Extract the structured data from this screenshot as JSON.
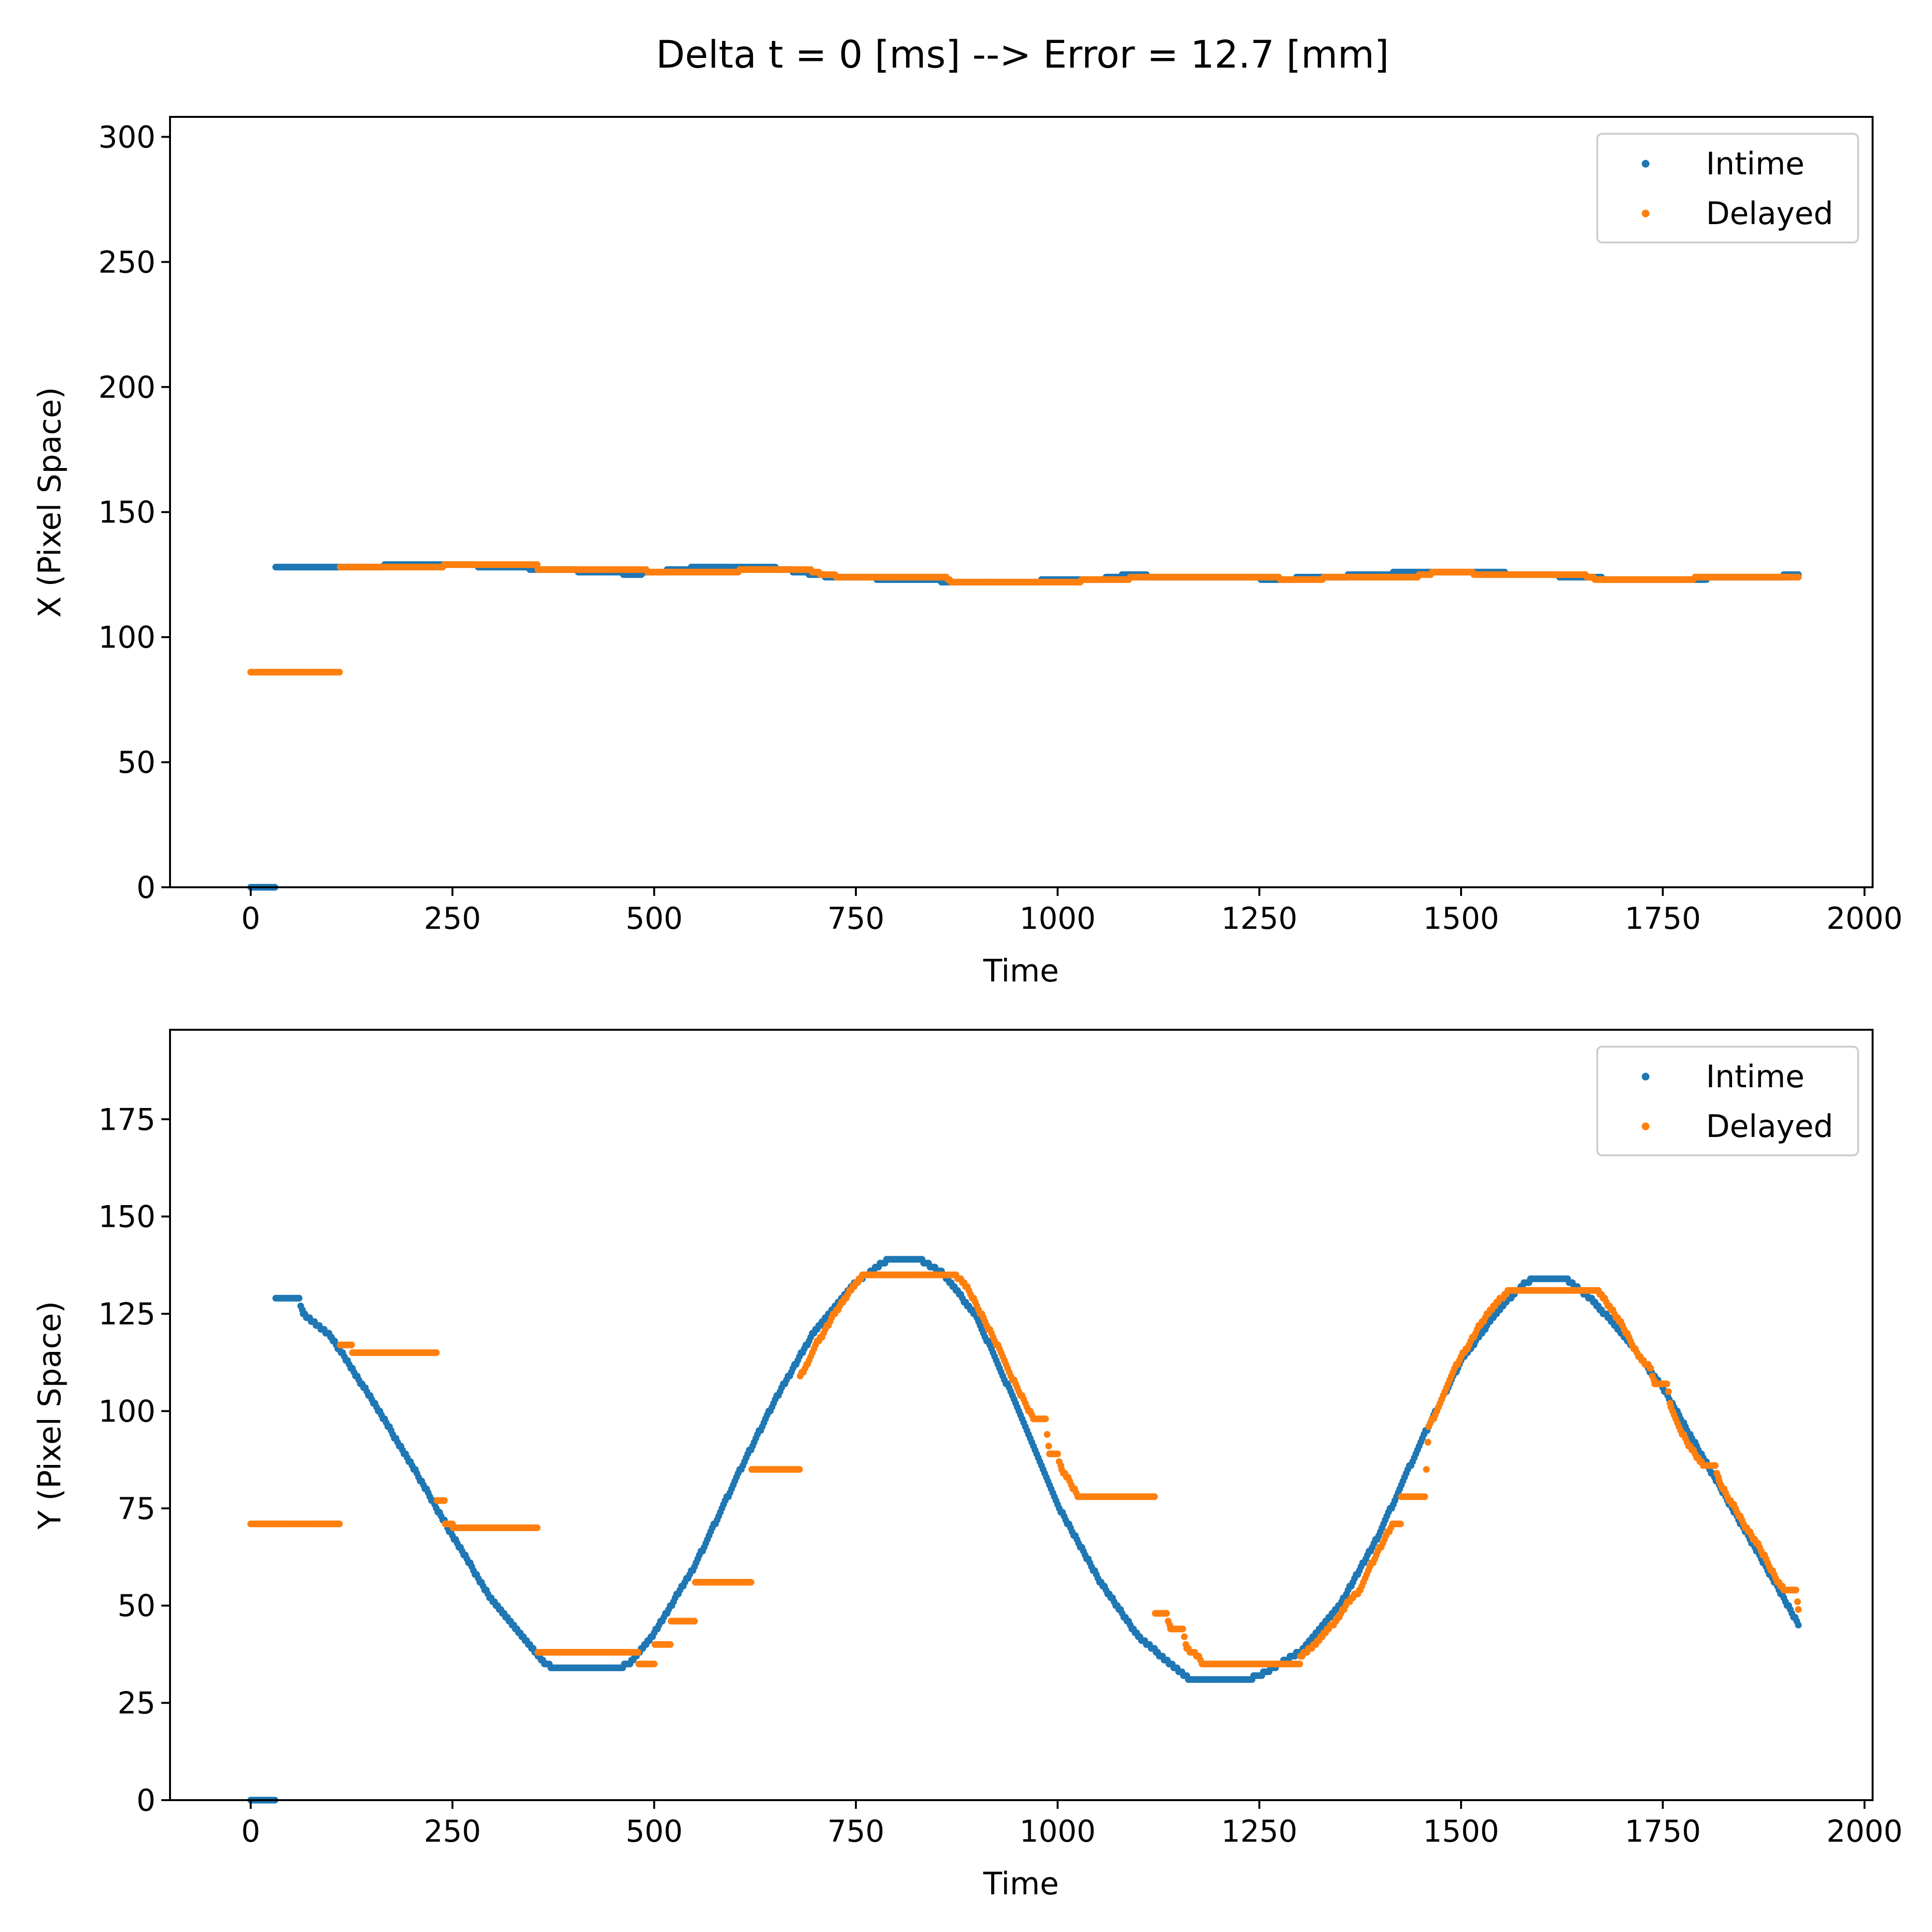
{
  "figure": {
    "title": "Delta t = 0 [ms] --> Error = 12.7 [mm]"
  },
  "chart_data": [
    {
      "type": "scatter",
      "xlabel": "Time",
      "ylabel": "X (Pixel Space)",
      "xlim": [
        -100,
        2010
      ],
      "ylim": [
        0,
        308
      ],
      "xticks": [
        0,
        250,
        500,
        750,
        1000,
        1250,
        1500,
        1750,
        2000
      ],
      "yticks": [
        0,
        50,
        100,
        150,
        200,
        250,
        300
      ],
      "grid": false,
      "legend_position": "top-right",
      "series": [
        {
          "name": "Intime",
          "color": "#1f77b4",
          "segments": [
            [
              0,
              0
            ],
            [
              30,
              0
            ],
            [
              31,
              128
            ],
            [
              100,
              128
            ],
            [
              230,
              129
            ],
            [
              330,
              128
            ],
            [
              360,
              127
            ],
            [
              450,
              126
            ],
            [
              470,
              125
            ],
            [
              530,
              127
            ],
            [
              560,
              128
            ],
            [
              640,
              128
            ],
            [
              680,
              126
            ],
            [
              720,
              124
            ],
            [
              830,
              123
            ],
            [
              880,
              122
            ],
            [
              960,
              122
            ],
            [
              1000,
              123
            ],
            [
              1050,
              123
            ],
            [
              1090,
              125
            ],
            [
              1130,
              124
            ],
            [
              1230,
              124
            ],
            [
              1270,
              123
            ],
            [
              1320,
              124
            ],
            [
              1400,
              125
            ],
            [
              1430,
              126
            ],
            [
              1520,
              126
            ],
            [
              1590,
              125
            ],
            [
              1650,
              124
            ],
            [
              1700,
              123
            ],
            [
              1780,
              123
            ],
            [
              1830,
              124
            ],
            [
              1880,
              124
            ],
            [
              1918,
              125
            ]
          ]
        },
        {
          "name": "Delayed",
          "color": "#ff7f0e",
          "segments": [
            [
              0,
              86
            ],
            [
              110,
              86
            ],
            [
              111,
              128
            ],
            [
              230,
              128
            ],
            [
              250,
              129
            ],
            [
              355,
              129
            ],
            [
              356,
              127
            ],
            [
              480,
              127
            ],
            [
              500,
              126
            ],
            [
              550,
              126
            ],
            [
              560,
              126
            ],
            [
              650,
              127
            ],
            [
              690,
              127
            ],
            [
              710,
              125
            ],
            [
              740,
              124
            ],
            [
              860,
              124
            ],
            [
              870,
              122
            ],
            [
              930,
              122
            ],
            [
              980,
              122
            ],
            [
              1000,
              122
            ],
            [
              1060,
              123
            ],
            [
              1120,
              124
            ],
            [
              1250,
              124
            ],
            [
              1300,
              123
            ],
            [
              1360,
              124
            ],
            [
              1440,
              124
            ],
            [
              1470,
              126
            ],
            [
              1560,
              125
            ],
            [
              1650,
              125
            ],
            [
              1670,
              123
            ],
            [
              1780,
              123
            ],
            [
              1800,
              124
            ],
            [
              1918,
              124
            ]
          ]
        }
      ]
    },
    {
      "type": "scatter",
      "xlabel": "Time",
      "ylabel": "Y (Pixel Space)",
      "xlim": [
        -100,
        2010
      ],
      "ylim": [
        0,
        198
      ],
      "xticks": [
        0,
        250,
        500,
        750,
        1000,
        1250,
        1500,
        1750,
        2000
      ],
      "yticks": [
        0,
        25,
        50,
        75,
        100,
        125,
        150,
        175
      ],
      "grid": false,
      "legend_position": "top-right",
      "series": [
        {
          "name": "Intime",
          "color": "#1f77b4",
          "segments": [
            [
              0,
              0
            ],
            [
              30,
              0
            ],
            [
              31,
              129
            ],
            [
              60,
              129
            ],
            [
              65,
              125
            ],
            [
              100,
              119
            ],
            [
              150,
              103
            ],
            [
              200,
              86
            ],
            [
              250,
              68
            ],
            [
              300,
              51
            ],
            [
              340,
              41
            ],
            [
              360,
              36
            ],
            [
              375,
              34
            ],
            [
              455,
              34
            ],
            [
              470,
              35
            ],
            [
              500,
              43
            ],
            [
              550,
              60
            ],
            [
              600,
              82
            ],
            [
              650,
              103
            ],
            [
              700,
              121
            ],
            [
              750,
              133
            ],
            [
              790,
              139
            ],
            [
              830,
              139
            ],
            [
              860,
              135
            ],
            [
              900,
              124
            ],
            [
              950,
              101
            ],
            [
              1000,
              76
            ],
            [
              1050,
              57
            ],
            [
              1100,
              42
            ],
            [
              1140,
              35
            ],
            [
              1165,
              31
            ],
            [
              1235,
              31
            ],
            [
              1260,
              33
            ],
            [
              1300,
              38
            ],
            [
              1350,
              50
            ],
            [
              1400,
              69
            ],
            [
              1450,
              92
            ],
            [
              1500,
              113
            ],
            [
              1550,
              127
            ],
            [
              1580,
              133
            ],
            [
              1590,
              134
            ],
            [
              1630,
              134
            ],
            [
              1660,
              129
            ],
            [
              1700,
              120
            ],
            [
              1750,
              106
            ],
            [
              1800,
              88
            ],
            [
              1850,
              70
            ],
            [
              1900,
              52
            ],
            [
              1918,
              45
            ]
          ]
        },
        {
          "name": "Delayed",
          "color": "#ff7f0e",
          "segments": [
            [
              0,
              71
            ],
            [
              110,
              71
            ],
            [
              111,
              117
            ],
            [
              125,
              117
            ],
            [
              126,
              115
            ],
            [
              230,
              115
            ],
            [
              231,
              77
            ],
            [
              240,
              77
            ],
            [
              241,
              71
            ],
            [
              250,
              71
            ],
            [
              251,
              70
            ],
            [
              355,
              70
            ],
            [
              356,
              38
            ],
            [
              480,
              38
            ],
            [
              481,
              35
            ],
            [
              500,
              35
            ],
            [
              501,
              40
            ],
            [
              520,
              40
            ],
            [
              521,
              46
            ],
            [
              550,
              46
            ],
            [
              551,
              56
            ],
            [
              620,
              56
            ],
            [
              621,
              85
            ],
            [
              680,
              85
            ],
            [
              681,
              109
            ],
            [
              690,
              112
            ],
            [
              700,
              117
            ],
            [
              710,
              120
            ],
            [
              720,
              124
            ],
            [
              730,
              127
            ],
            [
              740,
              130
            ],
            [
              750,
              133
            ],
            [
              760,
              135
            ],
            [
              870,
              135
            ],
            [
              880,
              134
            ],
            [
              890,
              131
            ],
            [
              900,
              127
            ],
            [
              910,
              123
            ],
            [
              920,
              119
            ],
            [
              930,
              115
            ],
            [
              940,
              110
            ],
            [
              950,
              106
            ],
            [
              960,
              102
            ],
            [
              970,
              98
            ],
            [
              985,
              98
            ],
            [
              990,
              89
            ],
            [
              1000,
              89
            ],
            [
              1005,
              85
            ],
            [
              1015,
              82
            ],
            [
              1025,
              78
            ],
            [
              1120,
              78
            ],
            [
              1121,
              48
            ],
            [
              1135,
              48
            ],
            [
              1140,
              44
            ],
            [
              1155,
              44
            ],
            [
              1160,
              39
            ],
            [
              1175,
              37
            ],
            [
              1180,
              35
            ],
            [
              1300,
              35
            ],
            [
              1301,
              37
            ],
            [
              1320,
              40
            ],
            [
              1330,
              43
            ],
            [
              1345,
              46
            ],
            [
              1360,
              51
            ],
            [
              1375,
              54
            ],
            [
              1385,
              59
            ],
            [
              1395,
              63
            ],
            [
              1405,
              67
            ],
            [
              1415,
              71
            ],
            [
              1425,
              71
            ],
            [
              1426,
              78
            ],
            [
              1455,
              78
            ],
            [
              1460,
              96
            ],
            [
              1470,
              100
            ],
            [
              1480,
              105
            ],
            [
              1490,
              110
            ],
            [
              1500,
              114
            ],
            [
              1510,
              117
            ],
            [
              1520,
              121
            ],
            [
              1530,
              124
            ],
            [
              1540,
              127
            ],
            [
              1550,
              129
            ],
            [
              1560,
              131
            ],
            [
              1670,
              131
            ],
            [
              1680,
              128
            ],
            [
              1690,
              125
            ],
            [
              1700,
              122
            ],
            [
              1710,
              118
            ],
            [
              1720,
              114
            ],
            [
              1735,
              111
            ],
            [
              1740,
              107
            ],
            [
              1755,
              107
            ],
            [
              1760,
              101
            ],
            [
              1770,
              96
            ],
            [
              1780,
              92
            ],
            [
              1790,
              89
            ],
            [
              1800,
              86
            ],
            [
              1815,
              86
            ],
            [
              1820,
              82
            ],
            [
              1830,
              78
            ],
            [
              1840,
              75
            ],
            [
              1850,
              71
            ],
            [
              1860,
              68
            ],
            [
              1870,
              65
            ],
            [
              1880,
              61
            ],
            [
              1890,
              57
            ],
            [
              1900,
              54
            ],
            [
              1915,
              54
            ],
            [
              1918,
              49
            ]
          ]
        }
      ]
    }
  ]
}
